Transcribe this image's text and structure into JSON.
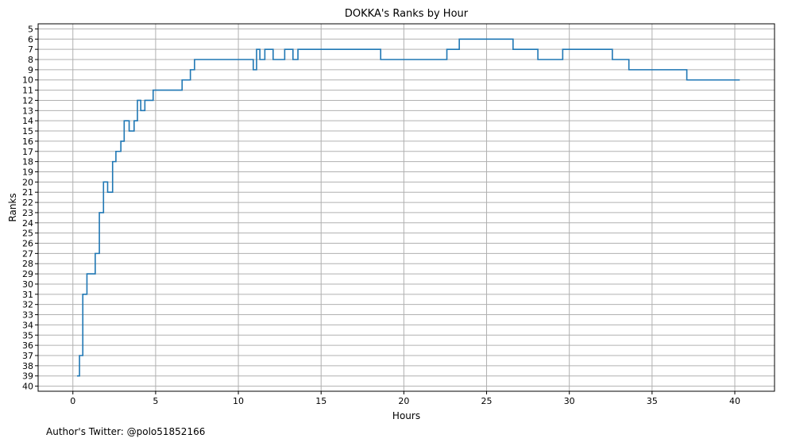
{
  "chart_data": {
    "type": "line",
    "step": "post",
    "title": "DOKKA's Ranks by Hour",
    "xlabel": "Hours",
    "ylabel": "Ranks",
    "footer": "Author's Twitter: @polo51852166",
    "xlim": [
      -2.1,
      42.4
    ],
    "ylim": [
      40.5,
      4.5
    ],
    "y_inverted": true,
    "grid": true,
    "x_ticks": [
      0,
      5,
      10,
      15,
      20,
      25,
      30,
      35,
      40
    ],
    "y_ticks": [
      5,
      6,
      7,
      8,
      9,
      10,
      11,
      12,
      13,
      14,
      15,
      16,
      17,
      18,
      19,
      20,
      21,
      22,
      23,
      24,
      25,
      26,
      27,
      28,
      29,
      30,
      31,
      32,
      33,
      34,
      35,
      36,
      37,
      38,
      39,
      40
    ],
    "line_color": "#1f77b4",
    "grid_color": "#b0b0b0",
    "series": [
      {
        "x": [
          0.25,
          0.4,
          0.6,
          0.85,
          1.35,
          1.6,
          1.85,
          2.1,
          2.4,
          2.6,
          2.9,
          3.1,
          3.4,
          3.7,
          3.9,
          4.1,
          4.35,
          4.85,
          6.6,
          7.1,
          7.35,
          10.9,
          11.1,
          11.3,
          11.6,
          12.1,
          12.8,
          13.3,
          13.6,
          18.6,
          22.6,
          23.35,
          26.6,
          28.1,
          29.6,
          32.6,
          33.6,
          37.1,
          40.3
        ],
        "y": [
          39,
          37,
          31,
          29,
          27,
          23,
          20,
          21,
          18,
          17,
          16,
          14,
          15,
          14,
          12,
          13,
          12,
          11,
          10,
          9,
          8,
          9,
          7,
          8,
          7,
          8,
          7,
          8,
          7,
          8,
          7,
          6,
          7,
          8,
          7,
          8,
          9,
          10,
          10
        ]
      }
    ]
  }
}
